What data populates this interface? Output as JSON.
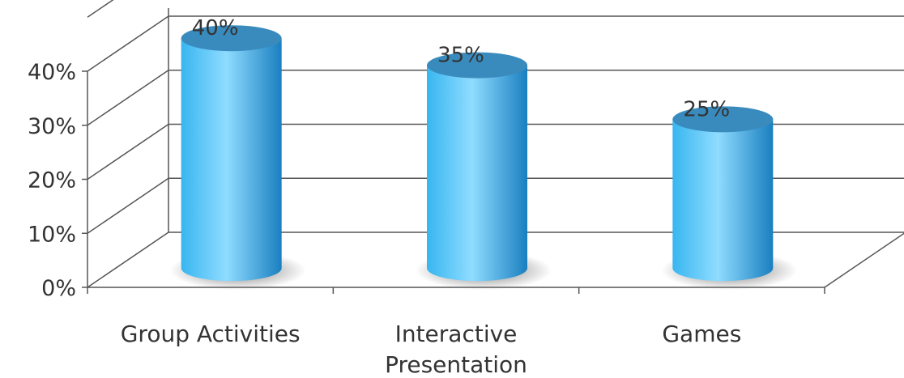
{
  "chart_data": {
    "type": "bar",
    "style": "3d-cylinder",
    "categories": [
      "Group Activities",
      "Interactive Presentation",
      "Games"
    ],
    "category_lines": [
      [
        "Group Activities"
      ],
      [
        "Interactive",
        "Presentation"
      ],
      [
        "Games"
      ]
    ],
    "values": [
      40,
      35,
      25
    ],
    "data_labels": [
      "40%",
      "35%",
      "25%"
    ],
    "y_ticks": [
      0,
      10,
      20,
      30,
      40
    ],
    "y_tick_labels": [
      "0%",
      "10%",
      "20%",
      "30%",
      "40%"
    ],
    "ylim": [
      0,
      40
    ],
    "grid": true,
    "legend": "none",
    "colors": {
      "bar_light": "#8fdcff",
      "bar_mid": "#38b6f0",
      "bar_dark": "#1a7fc0",
      "bar_top": "#3a8bbd",
      "grid": "#555555",
      "shadow": "#7a7a7a"
    }
  }
}
